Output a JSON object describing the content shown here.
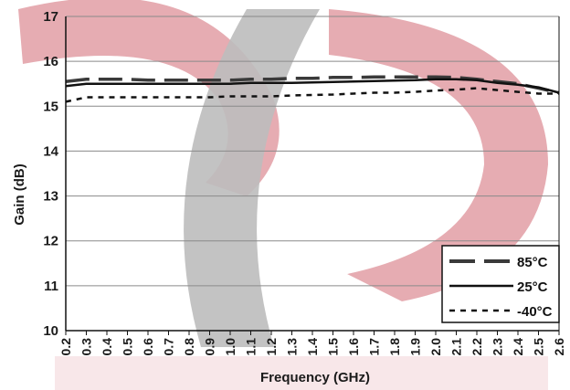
{
  "chart_data": {
    "type": "line",
    "title": "",
    "xlabel": "Frequency (GHz)",
    "ylabel": "Gain (dB)",
    "xlim": [
      0.2,
      2.6
    ],
    "ylim": [
      10,
      17
    ],
    "x_ticks": [
      "0.2",
      "0.3",
      "0.4",
      "0.5",
      "0.6",
      "0.7",
      "0.8",
      "0.9",
      "1.0",
      "1.1",
      "1.2",
      "1.3",
      "1.4",
      "1.5",
      "1.6",
      "1.7",
      "1.8",
      "1.9",
      "2.0",
      "2.1",
      "2.2",
      "2.3",
      "2.4",
      "2.5",
      "2.6"
    ],
    "y_ticks": [
      "10",
      "11",
      "12",
      "13",
      "14",
      "15",
      "16",
      "17"
    ],
    "grid": "horizontal",
    "legend_position": "bottom-right",
    "series": [
      {
        "name": "85°C",
        "style": "long-dash",
        "color": "#3a3a3a",
        "x": [
          0.2,
          0.3,
          0.4,
          0.5,
          0.6,
          0.7,
          0.8,
          0.9,
          1.0,
          1.1,
          1.2,
          1.3,
          1.4,
          1.5,
          1.6,
          1.7,
          1.8,
          1.9,
          2.0,
          2.1,
          2.2,
          2.3,
          2.4,
          2.5,
          2.6
        ],
        "y": [
          15.55,
          15.6,
          15.6,
          15.6,
          15.58,
          15.58,
          15.58,
          15.58,
          15.58,
          15.6,
          15.6,
          15.62,
          15.62,
          15.64,
          15.64,
          15.65,
          15.65,
          15.65,
          15.65,
          15.64,
          15.6,
          15.55,
          15.5,
          15.4,
          15.3
        ]
      },
      {
        "name": "25°C",
        "style": "solid",
        "color": "#111111",
        "x": [
          0.2,
          0.3,
          0.4,
          0.5,
          0.6,
          0.7,
          0.8,
          0.9,
          1.0,
          1.1,
          1.2,
          1.3,
          1.4,
          1.5,
          1.6,
          1.7,
          1.8,
          1.9,
          2.0,
          2.1,
          2.2,
          2.3,
          2.4,
          2.5,
          2.6
        ],
        "y": [
          15.45,
          15.5,
          15.5,
          15.5,
          15.5,
          15.5,
          15.5,
          15.5,
          15.5,
          15.52,
          15.52,
          15.52,
          15.53,
          15.54,
          15.55,
          15.56,
          15.57,
          15.58,
          15.6,
          15.6,
          15.58,
          15.52,
          15.48,
          15.42,
          15.3
        ]
      },
      {
        "name": "-40°C",
        "style": "dotted",
        "color": "#111111",
        "x": [
          0.2,
          0.3,
          0.4,
          0.5,
          0.6,
          0.7,
          0.8,
          0.9,
          1.0,
          1.1,
          1.2,
          1.3,
          1.4,
          1.5,
          1.6,
          1.7,
          1.8,
          1.9,
          2.0,
          2.1,
          2.2,
          2.3,
          2.4,
          2.5,
          2.6
        ],
        "y": [
          15.1,
          15.2,
          15.2,
          15.2,
          15.2,
          15.2,
          15.2,
          15.2,
          15.22,
          15.22,
          15.22,
          15.24,
          15.25,
          15.26,
          15.28,
          15.3,
          15.3,
          15.32,
          15.35,
          15.37,
          15.4,
          15.36,
          15.32,
          15.28,
          15.28
        ]
      }
    ]
  },
  "watermark": {
    "red": "#e3a3aa",
    "gray": "#bcbcbc"
  }
}
